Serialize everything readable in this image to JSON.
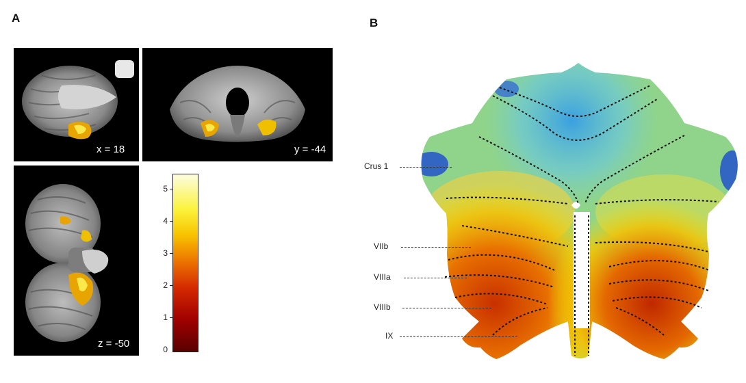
{
  "panels": {
    "a": {
      "letter": "A"
    },
    "b": {
      "letter": "B"
    }
  },
  "slices": {
    "sagittal": {
      "coord": "x = 18"
    },
    "coronal": {
      "coord": "y = -44"
    },
    "axial": {
      "coord": "z = -50"
    }
  },
  "colorbar": {
    "ticks": [
      "5",
      "4",
      "3",
      "2",
      "1",
      "0"
    ],
    "max_value": 5.5,
    "min_value": 0,
    "colors": [
      "#5a0000",
      "#a00000",
      "#d42a00",
      "#ee7a00",
      "#f8c400",
      "#fbf23a",
      "#fdfde0"
    ]
  },
  "flatmap": {
    "region_labels": [
      "Crus 1",
      "VIIb",
      "VIIIa",
      "VIIIb",
      "IX"
    ]
  }
}
